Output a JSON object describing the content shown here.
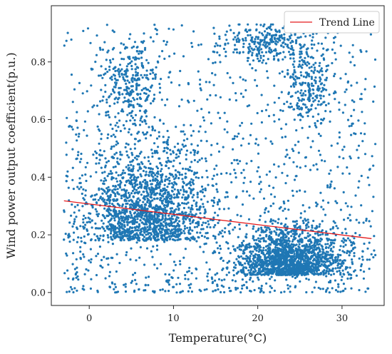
{
  "chart_data": {
    "type": "scatter",
    "xlabel": "Temperature(°C)",
    "ylabel": "Wind power output coefficient(p.u.)",
    "xlim": [
      -4.5,
      35
    ],
    "ylim": [
      -0.045,
      0.995
    ],
    "xticks": [
      0,
      10,
      20,
      30
    ],
    "yticks": [
      0.0,
      0.2,
      0.4,
      0.6,
      0.8
    ],
    "ytick_labels": [
      "0.0",
      "0.2",
      "0.4",
      "0.6",
      "0.8"
    ],
    "grid": false,
    "legend_position": "top-right",
    "scatter_color": "#1f77b4",
    "trend_color": "#e41a1c",
    "series": [
      {
        "name": "",
        "kind": "scatter",
        "description_x_range": [
          -3,
          34
        ],
        "description_y_range": [
          0.0,
          0.93
        ],
        "density_regions": [
          {
            "x_center": 7,
            "x_spread": 6,
            "y_center": 0.18,
            "y_spread": 0.16,
            "weight": 0.3
          },
          {
            "x_center": 24,
            "x_spread": 5,
            "y_center": 0.06,
            "y_spread": 0.08,
            "weight": 0.32
          },
          {
            "x_center": 5,
            "x_spread": 3,
            "y_center": 0.72,
            "y_spread": 0.1,
            "weight": 0.05
          },
          {
            "x_center": 26,
            "x_spread": 2.5,
            "y_center": 0.72,
            "y_spread": 0.1,
            "weight": 0.05
          },
          {
            "x_center": 21,
            "x_spread": 4,
            "y_center": 0.87,
            "y_spread": 0.05,
            "weight": 0.04
          }
        ],
        "uniform_weight": 0.24,
        "point_count": 5200
      },
      {
        "name": "Trend Line",
        "kind": "line",
        "x": [
          -3,
          33.5
        ],
        "y": [
          0.318,
          0.187
        ]
      }
    ]
  }
}
